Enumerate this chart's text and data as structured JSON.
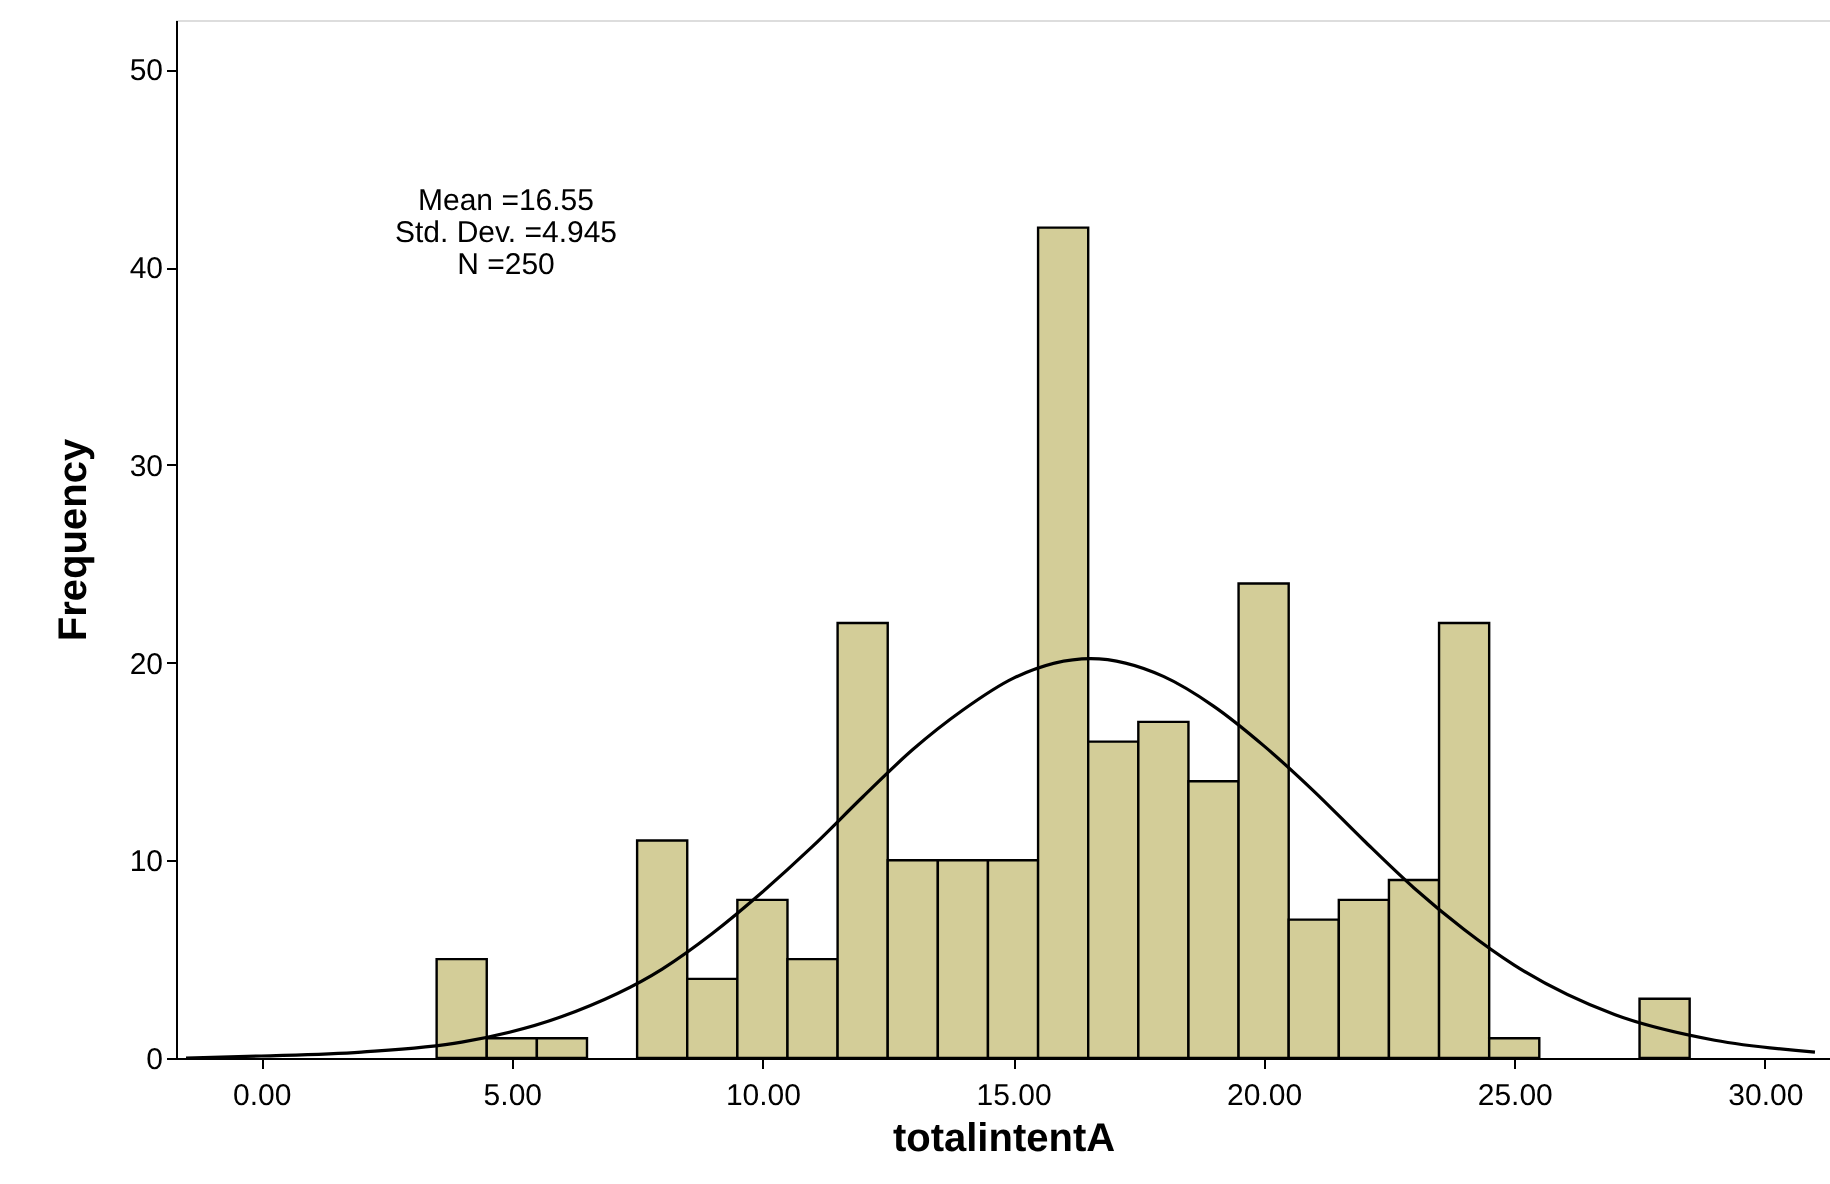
{
  "chart_data": {
    "type": "histogram",
    "xlabel": "totalintentA",
    "ylabel": "Frequency",
    "bins": [
      3.5,
      4.5,
      5.5,
      6.5,
      7.5,
      8.5,
      9.5,
      10.5,
      11.5,
      12.5,
      13.5,
      14.5,
      15.5,
      16.5,
      17.5,
      18.5,
      19.5,
      20.5,
      21.5,
      22.5,
      23.5,
      24.5,
      25.5,
      26.5,
      27.5,
      28.5
    ],
    "values": [
      5,
      1,
      1,
      0,
      11,
      4,
      8,
      5,
      22,
      10,
      10,
      10,
      42,
      16,
      17,
      14,
      24,
      7,
      8,
      9,
      22,
      1,
      0,
      0,
      3
    ],
    "color": "#d3cd98",
    "series": [
      {
        "type": "line",
        "color": "#000000",
        "x": [
          -1.5,
          0,
          2,
          4,
          6,
          8,
          9,
          10,
          11,
          12,
          13,
          14,
          15,
          16.55,
          18,
          19,
          20,
          21,
          22,
          23,
          24,
          25,
          27,
          29,
          31
        ],
        "values": [
          0.0,
          0.1,
          0.3,
          0.8,
          2.1,
          4.5,
          6.3,
          8.4,
          10.7,
          13.2,
          15.6,
          17.6,
          19.2,
          20.2,
          19.3,
          17.8,
          15.8,
          13.5,
          11.0,
          8.6,
          6.5,
          4.7,
          2.2,
          0.9,
          0.3
        ]
      }
    ],
    "xlim": [
      -1.7,
      31.3
    ],
    "ylim": [
      0,
      52.5
    ],
    "xticks": [
      {
        "value": 0,
        "label": "0.00"
      },
      {
        "value": 5,
        "label": "5.00"
      },
      {
        "value": 10,
        "label": "10.00"
      },
      {
        "value": 15,
        "label": "15.00"
      },
      {
        "value": 20,
        "label": "20.00"
      },
      {
        "value": 25,
        "label": "25.00"
      },
      {
        "value": 30,
        "label": "30.00"
      }
    ],
    "yticks": [
      0,
      10,
      20,
      30,
      40,
      50
    ],
    "annotations": [
      "Mean =16.55",
      "Std. Dev. =4.945",
      "N =250"
    ]
  }
}
